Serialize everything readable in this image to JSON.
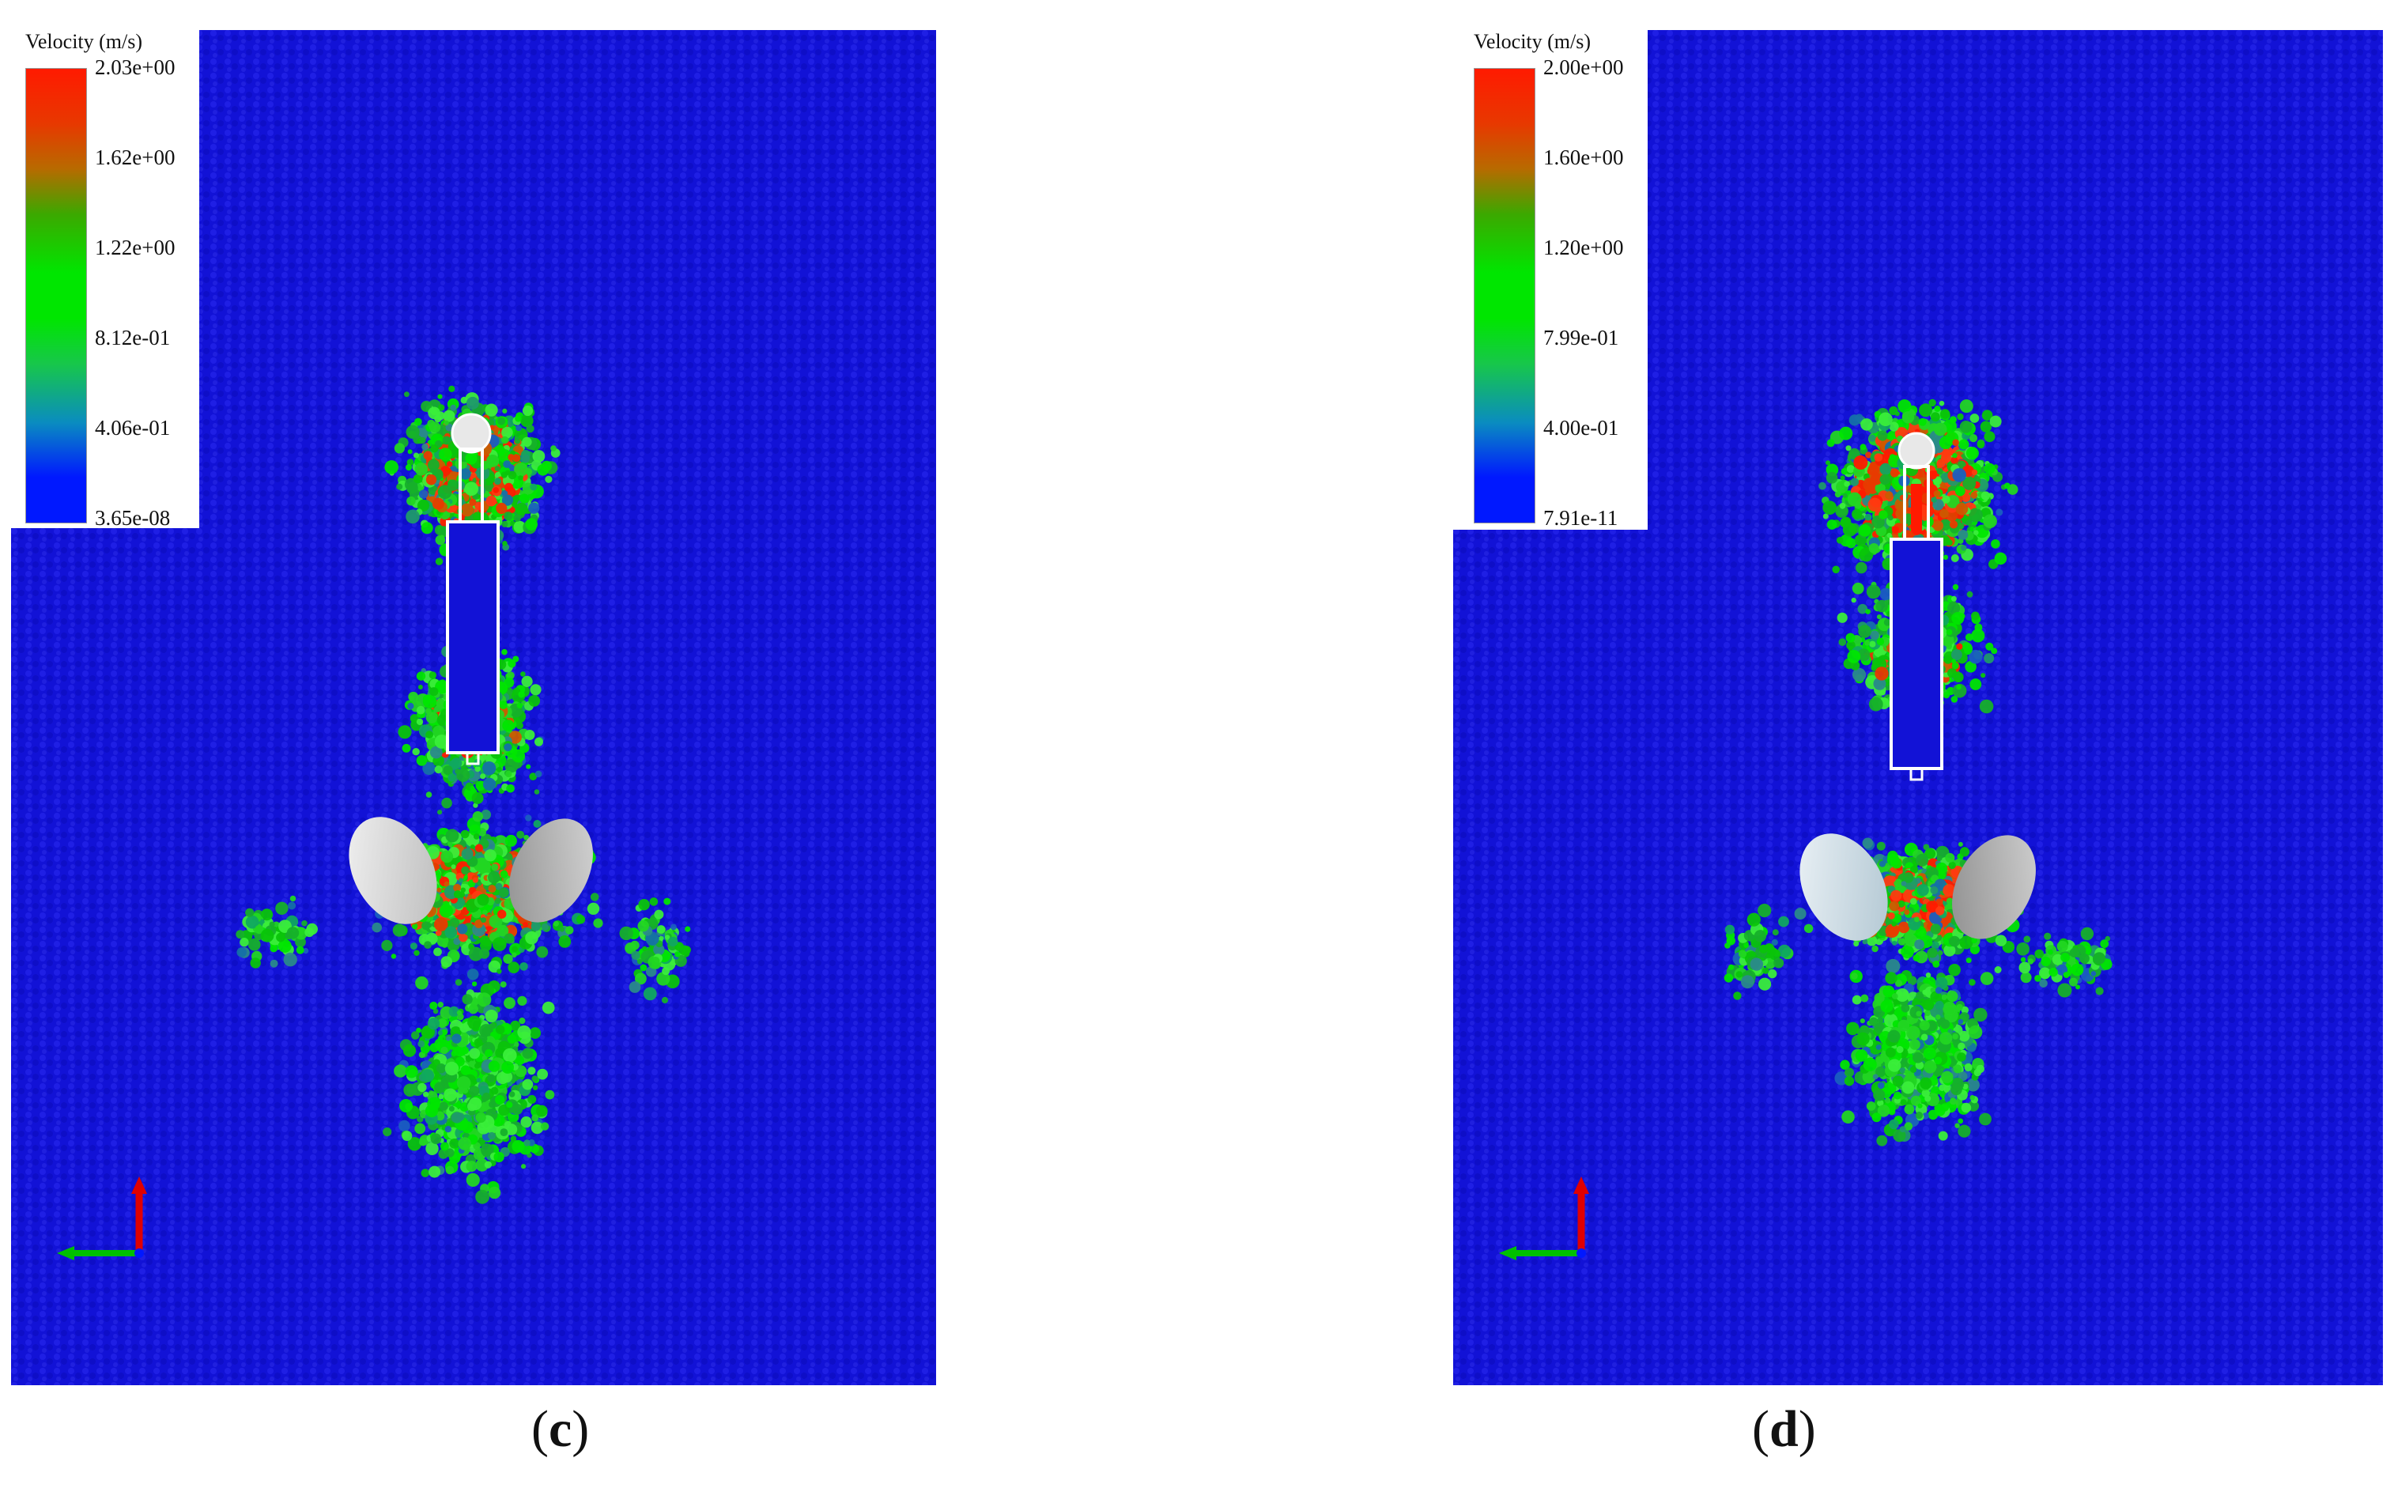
{
  "panels": [
    {
      "id": "c",
      "caption_open": "(",
      "caption_letter": "c",
      "caption_close": ")",
      "legend": {
        "title": "Velocity (m/s)",
        "ticks": [
          "2.03e+00",
          "1.62e+00",
          "1.22e+00",
          "8.12e-01",
          "4.06e-01",
          "3.65e-08"
        ]
      }
    },
    {
      "id": "d",
      "caption_open": "(",
      "caption_letter": "d",
      "caption_close": ")",
      "legend": {
        "title": "Velocity (m/s)",
        "ticks": [
          "2.00e+00",
          "1.60e+00",
          "1.20e+00",
          "7.99e-01",
          "4.00e-01",
          "7.91e-11"
        ]
      }
    }
  ],
  "colors": {
    "background_particles": "#1111d8",
    "high_velocity": "#ff1a00",
    "mid_velocity": "#00e600",
    "low_velocity": "#0018ff",
    "axis_red": "#e00000",
    "axis_green": "#00c000"
  }
}
